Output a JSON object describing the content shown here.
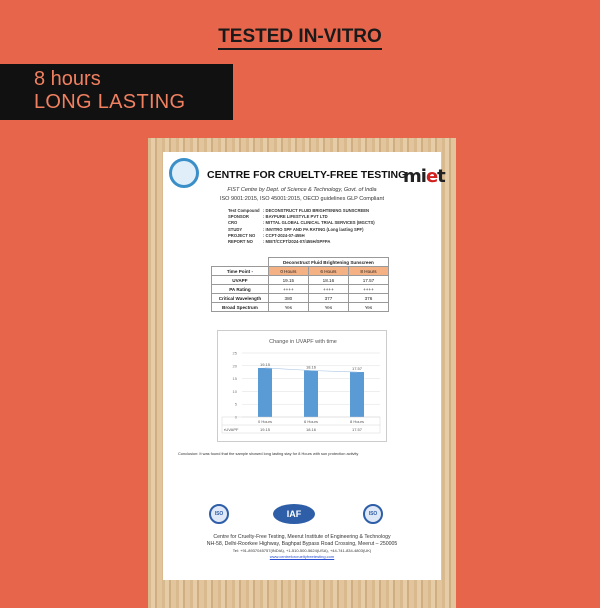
{
  "heading": "TESTED IN-VITRO",
  "badge": {
    "line1": "8 hours",
    "line2": "LONG LASTING"
  },
  "document": {
    "title": "CENTRE FOR CRUELTY-FREE TESTING",
    "logo_right": "miet",
    "subtitle1": "FIST Centre by Dept. of Science & Technology, Govt. of India",
    "subtitle2": "ISO 9001:2015, ISO 45001:2015, OECD guidelines GLP Compliant",
    "meta": [
      {
        "k": "Test Compound",
        "v": ": DECONSTRUCT FLUID BRIGHTENING SUNSCREEN"
      },
      {
        "k": "SPONSOR",
        "v": ": BAYPURE LIFESTYLE PVT LTD"
      },
      {
        "k": "CRO",
        "v": ": MITTAL GLOBAL CLINICAL TRIAL SERVICES (MGCTS)"
      },
      {
        "k": "STUDY",
        "v": ": INVITRO SPF AND PA RATING (Long lasting SPF)"
      },
      {
        "k": "PROJECT NO",
        "v": ": CCFT-2024-07-455H"
      },
      {
        "k": "REPORT NO",
        "v": ": MIET/CCFT/2024-07/455H/SPFPA"
      }
    ],
    "table": {
      "product": "Deconstruct Fluid Brightening Sunscreen",
      "header": [
        "Time Point -",
        "0 Hours",
        "6 Hours",
        "8 Hours"
      ],
      "rows": [
        [
          "UVAPF",
          "19.15",
          "18.16",
          "17.57"
        ],
        [
          "PA Rating",
          "++++",
          "++++",
          "++++"
        ],
        [
          "Critical Wavelength",
          "380",
          "377",
          "376"
        ],
        [
          "Broad Spectrum",
          "Yes",
          "Yes",
          "Yes"
        ]
      ]
    },
    "conclusion": "Conclusion: It was found that the sample showed long lasting stay for 8 Hours with sun protection activity",
    "iaf": "IAF",
    "footer": {
      "line1": "Centre for Cruelty-Free Testing, Meerut Institute of Engineering & Technology",
      "line2": "NH-58, Delhi-Roorkee Highway, Baghpat Bypass Road Crossing, Meerut – 250005",
      "line3": "Tel: +91-8937045757(INDIA), +1-510-500-5624(USA), +44-741-834-4803(UK)",
      "website": "www.centreforcrueltyfreetesting.com"
    }
  },
  "chart_data": {
    "type": "bar",
    "title": "Change in UVAPF with time",
    "categories": [
      "0 Hours",
      "6 Hours",
      "8 Hours"
    ],
    "series": [
      {
        "name": "UVAPF",
        "values": [
          19.15,
          18.16,
          17.57
        ]
      }
    ],
    "data_labels": [
      "19.15",
      "18.16",
      "17.57"
    ],
    "ylim": [
      0,
      25
    ],
    "yticks": [
      "0",
      "5",
      "10",
      "15",
      "20",
      "25"
    ],
    "grid": true,
    "trendline": true,
    "data_table": true,
    "bar_color": "#5b9bd5"
  }
}
